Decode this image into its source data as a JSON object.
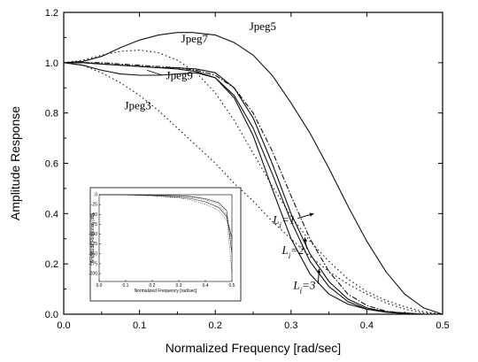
{
  "chart_data": {
    "type": "line",
    "xlabel": "Normalized Frequency [rad/sec]",
    "ylabel": "Amplitude Response",
    "xlim": [
      0.0,
      0.5
    ],
    "ylim": [
      0.0,
      1.2
    ],
    "xticks": [
      0.0,
      0.1,
      0.2,
      0.3,
      0.4,
      0.5
    ],
    "xtick_labels": [
      "0.0",
      "0.1",
      "0.2",
      "0.3",
      "0.4",
      "0.5"
    ],
    "yticks": [
      0.0,
      0.2,
      0.4,
      0.6,
      0.8,
      1.0,
      1.2
    ],
    "ytick_labels": [
      "0.0",
      "0.2",
      "0.4",
      "0.6",
      "0.8",
      "1.0",
      "1.2"
    ],
    "grid": false,
    "series": [
      {
        "name": "Jpeg5",
        "style": "solid",
        "x": [
          0,
          0.025,
          0.05,
          0.075,
          0.1,
          0.125,
          0.15,
          0.17,
          0.2,
          0.225,
          0.25,
          0.275,
          0.3,
          0.325,
          0.35,
          0.375,
          0.4,
          0.425,
          0.45,
          0.475,
          0.5
        ],
        "y": [
          1.0,
          1.005,
          1.025,
          1.06,
          1.09,
          1.11,
          1.12,
          1.12,
          1.11,
          1.08,
          1.03,
          0.95,
          0.84,
          0.72,
          0.58,
          0.43,
          0.29,
          0.17,
          0.08,
          0.025,
          0.0
        ]
      },
      {
        "name": "Jpeg7",
        "style": "dotted",
        "x": [
          0,
          0.025,
          0.05,
          0.075,
          0.1,
          0.125,
          0.15,
          0.175,
          0.2,
          0.225,
          0.25,
          0.275,
          0.3,
          0.325,
          0.35,
          0.375,
          0.4,
          0.425,
          0.45,
          0.475,
          0.5
        ],
        "y": [
          1.0,
          1.01,
          1.03,
          1.045,
          1.05,
          1.04,
          1.01,
          0.96,
          0.88,
          0.77,
          0.64,
          0.51,
          0.39,
          0.29,
          0.21,
          0.14,
          0.09,
          0.055,
          0.03,
          0.01,
          0.0
        ]
      },
      {
        "name": "Jpeg9",
        "style": "solid",
        "x": [
          0,
          0.025,
          0.05,
          0.075,
          0.1,
          0.125,
          0.15,
          0.175,
          0.2,
          0.225,
          0.25,
          0.275,
          0.3,
          0.325,
          0.35,
          0.375,
          0.4,
          0.425,
          0.45,
          0.475,
          0.5
        ],
        "y": [
          1.0,
          0.99,
          0.97,
          0.955,
          0.95,
          0.95,
          0.955,
          0.96,
          0.94,
          0.86,
          0.71,
          0.5,
          0.3,
          0.16,
          0.08,
          0.04,
          0.02,
          0.01,
          0.005,
          0.0,
          0.0
        ]
      },
      {
        "name": "Jpeg3",
        "style": "dotted",
        "x": [
          0,
          0.025,
          0.05,
          0.075,
          0.1,
          0.125,
          0.15,
          0.175,
          0.2,
          0.225,
          0.25,
          0.275,
          0.3,
          0.325,
          0.35,
          0.375,
          0.4,
          0.425,
          0.45,
          0.475,
          0.5
        ],
        "y": [
          1.0,
          0.99,
          0.96,
          0.92,
          0.87,
          0.81,
          0.74,
          0.67,
          0.6,
          0.52,
          0.45,
          0.37,
          0.3,
          0.23,
          0.17,
          0.12,
          0.08,
          0.045,
          0.02,
          0.005,
          0.0
        ]
      },
      {
        "name": "Li=1",
        "style": "solid",
        "x": [
          0,
          0.025,
          0.05,
          0.075,
          0.1,
          0.125,
          0.15,
          0.175,
          0.2,
          0.225,
          0.25,
          0.275,
          0.3,
          0.325,
          0.35,
          0.375,
          0.4,
          0.425,
          0.45,
          0.475,
          0.5
        ],
        "y": [
          1.0,
          1.0,
          0.995,
          0.99,
          0.985,
          0.98,
          0.98,
          0.975,
          0.96,
          0.9,
          0.78,
          0.6,
          0.4,
          0.24,
          0.13,
          0.06,
          0.025,
          0.01,
          0.003,
          0.0,
          0.0
        ]
      },
      {
        "name": "Li=2",
        "style": "solid",
        "x": [
          0,
          0.025,
          0.05,
          0.075,
          0.1,
          0.125,
          0.15,
          0.175,
          0.2,
          0.225,
          0.25,
          0.275,
          0.3,
          0.325,
          0.35,
          0.375,
          0.4,
          0.425,
          0.45,
          0.475,
          0.5
        ],
        "y": [
          1.0,
          1.0,
          0.995,
          0.99,
          0.985,
          0.98,
          0.975,
          0.965,
          0.94,
          0.87,
          0.74,
          0.56,
          0.37,
          0.21,
          0.11,
          0.05,
          0.02,
          0.008,
          0.002,
          0.0,
          0.0
        ]
      },
      {
        "name": "Li=3",
        "style": "dashdot",
        "x": [
          0,
          0.025,
          0.05,
          0.075,
          0.1,
          0.125,
          0.15,
          0.175,
          0.2,
          0.225,
          0.25,
          0.275,
          0.3,
          0.325,
          0.35,
          0.375,
          0.4,
          0.425,
          0.45,
          0.475,
          0.5
        ],
        "y": [
          1.0,
          1.0,
          1.0,
          0.995,
          0.99,
          0.985,
          0.98,
          0.97,
          0.95,
          0.9,
          0.8,
          0.65,
          0.47,
          0.3,
          0.17,
          0.08,
          0.035,
          0.012,
          0.004,
          0.0,
          0.0
        ]
      }
    ],
    "annotations": [
      {
        "id": "jpeg5",
        "text": "Jpeg5",
        "x": 0.245,
        "y": 1.13
      },
      {
        "id": "jpeg7",
        "text": "Jpeg7",
        "x": 0.155,
        "y": 1.08
      },
      {
        "id": "jpeg9",
        "text": "Jpeg9",
        "x": 0.135,
        "y": 0.935
      },
      {
        "id": "jpeg3",
        "text": "Jpeg3",
        "x": 0.08,
        "y": 0.815
      }
    ],
    "l_labels": [
      {
        "id": "l1",
        "base": "L",
        "sub": "i",
        "rest": "=1",
        "x": 0.276,
        "y": 0.36,
        "ax": 0.33,
        "ay": 0.4
      },
      {
        "id": "l2",
        "base": "L",
        "sub": "i",
        "rest": "=2",
        "x": 0.288,
        "y": 0.24,
        "ax": 0.318,
        "ay": 0.305
      },
      {
        "id": "l3",
        "base": "L",
        "sub": "i",
        "rest": "=3",
        "x": 0.303,
        "y": 0.1,
        "ax": 0.337,
        "ay": 0.18
      }
    ],
    "inset": {
      "type": "line",
      "xlabel": "Normalized Frequency [rad/sec]",
      "ylabel": "Amplitude Response [dB]",
      "xlim": [
        0.0,
        0.5
      ],
      "ylim": [
        -220,
        0
      ],
      "xtick_labels": [
        "0.0",
        "0.1",
        "0.2",
        "0.3",
        "0.4",
        "0.5"
      ],
      "xticks": [
        0.0,
        0.1,
        0.2,
        0.3,
        0.4,
        0.5
      ],
      "ytick_labels": [
        "0",
        "-25",
        "-50",
        "-75",
        "-100",
        "-125",
        "-150",
        "-175",
        "-200"
      ],
      "yticks": [
        0,
        -25,
        -50,
        -75,
        -100,
        -125,
        -150,
        -175,
        -200
      ],
      "series": [
        {
          "x": [
            0,
            0.1,
            0.2,
            0.3,
            0.35,
            0.4,
            0.45,
            0.48,
            0.5
          ],
          "y": [
            0,
            -0.5,
            -2,
            -6,
            -10,
            -18,
            -32,
            -55,
            -110
          ]
        },
        {
          "x": [
            0,
            0.1,
            0.2,
            0.3,
            0.35,
            0.4,
            0.45,
            0.48,
            0.5
          ],
          "y": [
            0,
            -0.3,
            -1,
            -3,
            -6,
            -12,
            -25,
            -50,
            -200
          ]
        },
        {
          "x": [
            0,
            0.1,
            0.2,
            0.3,
            0.35,
            0.4,
            0.45,
            0.48,
            0.5
          ],
          "y": [
            0,
            -0.2,
            -0.8,
            -2.5,
            -5,
            -10,
            -20,
            -40,
            -150
          ]
        },
        {
          "x": [
            0,
            0.1,
            0.2,
            0.3,
            0.35,
            0.4,
            0.45,
            0.48,
            0.5
          ],
          "y": [
            0,
            -0.5,
            -3,
            -8,
            -14,
            -24,
            -40,
            -65,
            -120
          ]
        }
      ]
    }
  }
}
